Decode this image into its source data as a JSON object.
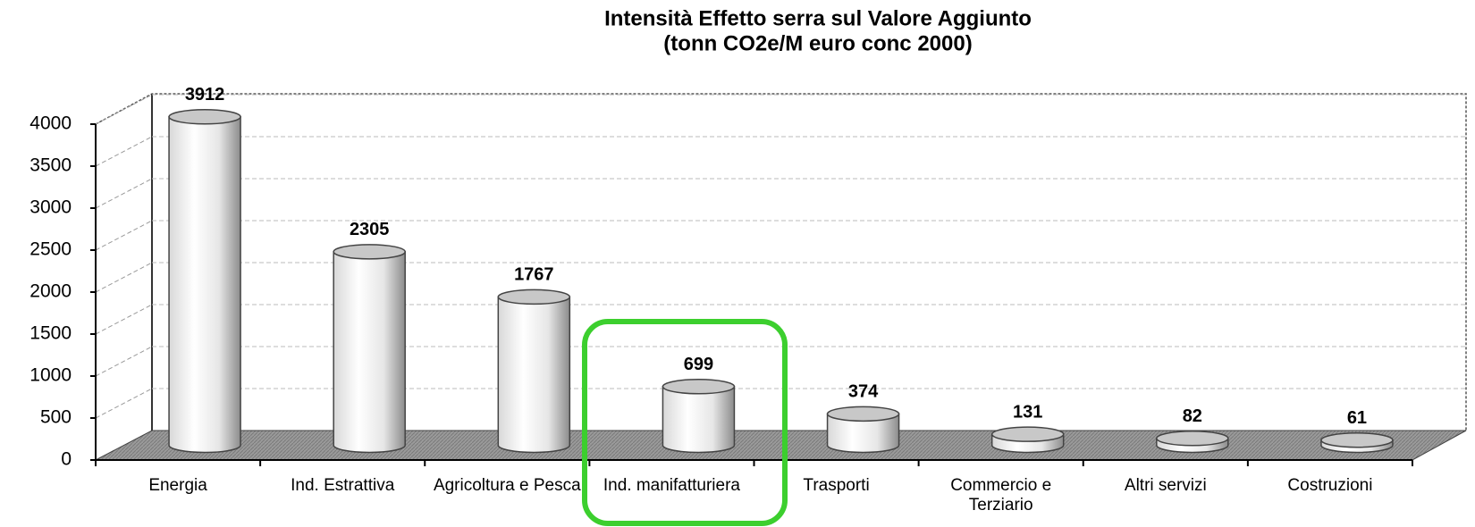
{
  "chart_data": {
    "type": "bar3d",
    "title": "Intensità Effetto serra sul Valore Aggiunto",
    "subtitle": "(tonn CO2e/M euro conc 2000)",
    "categories": [
      "Energia",
      "Ind. Estrattiva",
      "Agricoltura e Pesca",
      "Ind. manifatturiera",
      "Trasporti",
      "Commercio e Terziario",
      "Altri servizi",
      "Costruzioni"
    ],
    "values": [
      3912,
      2305,
      1767,
      699,
      374,
      131,
      82,
      61
    ],
    "color": "#ffffff",
    "ylim": [
      0,
      4000
    ],
    "yticks": [
      0,
      500,
      1000,
      1500,
      2000,
      2500,
      3000,
      3500,
      4000
    ],
    "grid": true
  }
}
